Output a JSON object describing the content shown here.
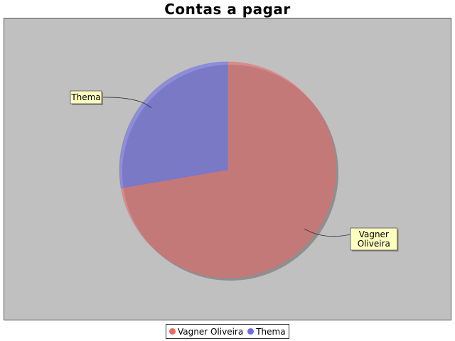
{
  "chart_data": {
    "type": "pie",
    "title": "Contas a pagar",
    "slices": [
      {
        "label": "Vagner Oliveira",
        "value": 72.3,
        "color": "#e86a6a",
        "label_lines": [
          "Vagner",
          "Oliveira"
        ]
      },
      {
        "label": "Thema",
        "value": 27.7,
        "color": "#6b6bea",
        "label_lines": [
          "Thema"
        ]
      }
    ],
    "legend_placement": "bottom",
    "plot_background": "#c0c0c0"
  }
}
